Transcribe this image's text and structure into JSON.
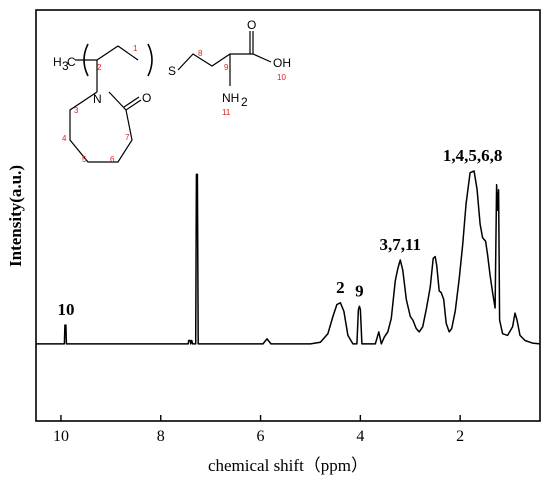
{
  "chart_data": {
    "type": "line",
    "title": "",
    "xlabel": "chemical shift（ppm）",
    "ylabel": "Intensity(a.u.)",
    "xlim": [
      10.5,
      0.4
    ],
    "x_reversed": true,
    "ylim": [
      -0.45,
      1.95
    ],
    "ticks": [
      {
        "value": 10,
        "label": "10"
      },
      {
        "value": 8,
        "label": "8"
      },
      {
        "value": 6,
        "label": "6"
      },
      {
        "value": 4,
        "label": "4"
      },
      {
        "value": 2,
        "label": "2"
      }
    ],
    "series": [
      {
        "points": [
          [
            10.5,
            0.0
          ],
          [
            9.93,
            0.0
          ],
          [
            9.92,
            0.11
          ],
          [
            9.9,
            0.11
          ],
          [
            9.89,
            0.0
          ],
          [
            7.45,
            0.0
          ],
          [
            7.44,
            0.02
          ],
          [
            7.41,
            0.02
          ],
          [
            7.4,
            0.0
          ],
          [
            7.38,
            0.02
          ],
          [
            7.36,
            0.0
          ],
          [
            7.3,
            0.0
          ],
          [
            7.285,
            0.99
          ],
          [
            7.265,
            0.99
          ],
          [
            7.25,
            0.0
          ],
          [
            5.95,
            0.0
          ],
          [
            5.87,
            0.03
          ],
          [
            5.79,
            0.0
          ],
          [
            5.0,
            0.0
          ],
          [
            4.8,
            0.01
          ],
          [
            4.65,
            0.06
          ],
          [
            4.55,
            0.16
          ],
          [
            4.47,
            0.23
          ],
          [
            4.4,
            0.24
          ],
          [
            4.33,
            0.19
          ],
          [
            4.25,
            0.05
          ],
          [
            4.15,
            0.0
          ],
          [
            4.07,
            0.0
          ],
          [
            4.04,
            0.2
          ],
          [
            4.02,
            0.22
          ],
          [
            4.0,
            0.2
          ],
          [
            3.97,
            0.0
          ],
          [
            3.7,
            0.0
          ],
          [
            3.63,
            0.07
          ],
          [
            3.58,
            0.0
          ],
          [
            3.52,
            0.04
          ],
          [
            3.45,
            0.07
          ],
          [
            3.38,
            0.15
          ],
          [
            3.3,
            0.37
          ],
          [
            3.25,
            0.44
          ],
          [
            3.2,
            0.49
          ],
          [
            3.15,
            0.43
          ],
          [
            3.08,
            0.26
          ],
          [
            3.0,
            0.16
          ],
          [
            2.95,
            0.14
          ],
          [
            2.88,
            0.09
          ],
          [
            2.82,
            0.07
          ],
          [
            2.75,
            0.1
          ],
          [
            2.68,
            0.2
          ],
          [
            2.6,
            0.33
          ],
          [
            2.54,
            0.5
          ],
          [
            2.5,
            0.51
          ],
          [
            2.47,
            0.46
          ],
          [
            2.42,
            0.31
          ],
          [
            2.38,
            0.3
          ],
          [
            2.33,
            0.26
          ],
          [
            2.28,
            0.12
          ],
          [
            2.22,
            0.07
          ],
          [
            2.17,
            0.09
          ],
          [
            2.1,
            0.19
          ],
          [
            2.02,
            0.38
          ],
          [
            1.95,
            0.58
          ],
          [
            1.88,
            0.82
          ],
          [
            1.8,
            1.0
          ],
          [
            1.72,
            1.01
          ],
          [
            1.66,
            0.9
          ],
          [
            1.6,
            0.7
          ],
          [
            1.55,
            0.62
          ],
          [
            1.49,
            0.6
          ],
          [
            1.45,
            0.52
          ],
          [
            1.4,
            0.4
          ],
          [
            1.35,
            0.3
          ],
          [
            1.3,
            0.21
          ],
          [
            1.27,
            0.93
          ],
          [
            1.25,
            0.78
          ],
          [
            1.23,
            0.9
          ],
          [
            1.21,
            0.14
          ],
          [
            1.15,
            0.06
          ],
          [
            1.05,
            0.05
          ],
          [
            0.95,
            0.1
          ],
          [
            0.9,
            0.18
          ],
          [
            0.86,
            0.14
          ],
          [
            0.8,
            0.05
          ],
          [
            0.7,
            0.02
          ],
          [
            0.55,
            0.005
          ],
          [
            0.4,
            0.0
          ]
        ]
      }
    ],
    "annotations": [
      {
        "text": "10",
        "x": 9.9,
        "y": 0.11
      },
      {
        "text": "2",
        "x": 4.4,
        "y": 0.24
      },
      {
        "text": "9",
        "x": 4.02,
        "y": 0.22
      },
      {
        "text": "3,7,11",
        "x": 3.2,
        "y": 0.49
      },
      {
        "text": "1,4,5,6,8",
        "x": 1.75,
        "y": 1.01
      }
    ],
    "line_color": "#000000",
    "grid": false,
    "legend": "none"
  },
  "structure": {
    "atoms": {
      "methyl": "H",
      "methyl_sub": "3",
      "methyl_c": "C",
      "sulfur": "S",
      "nitrogen": "N",
      "ketone_oxygen": "O",
      "acid_oxygen": "O",
      "hydroxyl": "OH",
      "amine": "NH",
      "amine_sub": "2"
    },
    "numbers": [
      "1",
      "2",
      "3",
      "4",
      "5",
      "6",
      "7",
      "8",
      "9",
      "10",
      "11"
    ]
  }
}
